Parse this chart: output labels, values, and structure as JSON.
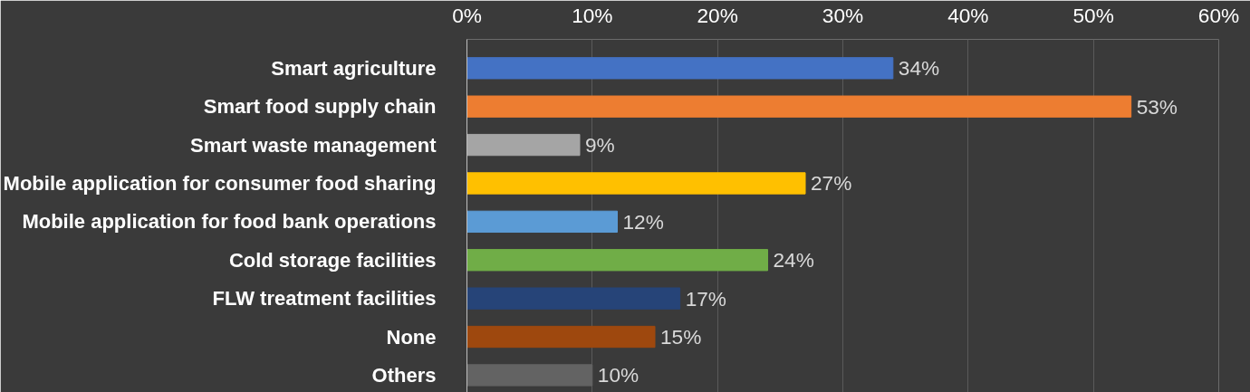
{
  "chart_data": {
    "type": "bar",
    "orientation": "horizontal",
    "categories": [
      "Smart agriculture",
      "Smart food supply chain",
      "Smart waste management",
      "Mobile application for consumer food sharing",
      "Mobile application for food bank operations",
      "Cold storage facilities",
      "FLW treatment facilities",
      "None",
      "Others"
    ],
    "values": [
      34,
      53,
      9,
      27,
      12,
      24,
      17,
      15,
      10
    ],
    "colors": [
      "#4472c4",
      "#ed7d31",
      "#a5a5a5",
      "#ffc000",
      "#5b9bd5",
      "#70ad47",
      "#264478",
      "#9e480e",
      "#636363"
    ],
    "value_labels": [
      "34%",
      "53%",
      "9%",
      "27%",
      "12%",
      "24%",
      "17%",
      "15%",
      "10%"
    ],
    "xlim": [
      0,
      60
    ],
    "xticks": [
      {
        "value": 0,
        "label": "0%"
      },
      {
        "value": 10,
        "label": "10%"
      },
      {
        "value": 20,
        "label": "20%"
      },
      {
        "value": 30,
        "label": "30%"
      },
      {
        "value": 40,
        "label": "40%"
      },
      {
        "value": 50,
        "label": "50%"
      },
      {
        "value": 60,
        "label": "60%"
      }
    ],
    "grid": "x"
  }
}
